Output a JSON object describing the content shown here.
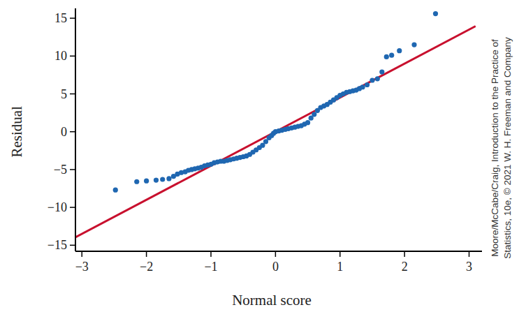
{
  "chart_data": {
    "type": "scatter",
    "x_label": "Normal score",
    "y_label": "Residual",
    "annotations": [
      "Moore/McCabe/Craig, Introduction to the Practice of",
      "Statistics, 10e, © 2021 W. H. Freeman and Company"
    ],
    "xlim": [
      -3.1,
      3.2
    ],
    "ylim": [
      -15.8,
      16.3
    ],
    "xticks": [
      {
        "value": -3,
        "label": "−3"
      },
      {
        "value": -2,
        "label": "−2"
      },
      {
        "value": -1,
        "label": "−1"
      },
      0,
      1,
      2,
      3
    ],
    "yticks": [
      {
        "value": -15,
        "label": "−15"
      },
      {
        "value": -10,
        "label": "−10"
      },
      {
        "value": -5,
        "label": "−5"
      },
      0,
      5,
      10,
      15
    ],
    "grid": false,
    "series": [
      {
        "type": "scatter",
        "color": "#1f67b1",
        "marker": "circle",
        "x": [
          -2.48,
          -2.15,
          -2.0,
          -1.85,
          -1.75,
          -1.65,
          -1.58,
          -1.52,
          -1.46,
          -1.4,
          -1.35,
          -1.3,
          -1.25,
          -1.2,
          -1.15,
          -1.1,
          -1.05,
          -1.0,
          -0.95,
          -0.9,
          -0.85,
          -0.8,
          -0.75,
          -0.7,
          -0.65,
          -0.6,
          -0.55,
          -0.5,
          -0.45,
          -0.4,
          -0.35,
          -0.3,
          -0.25,
          -0.2,
          -0.15,
          -0.1,
          -0.06,
          -0.03,
          0.0,
          0.05,
          0.1,
          0.15,
          0.2,
          0.25,
          0.3,
          0.35,
          0.4,
          0.45,
          0.5,
          0.55,
          0.6,
          0.65,
          0.7,
          0.75,
          0.8,
          0.85,
          0.9,
          0.95,
          1.0,
          1.05,
          1.1,
          1.15,
          1.2,
          1.25,
          1.3,
          1.35,
          1.42,
          1.5,
          1.58,
          1.65,
          1.72,
          1.8,
          1.92,
          2.15,
          2.48
        ],
        "values": [
          -7.7,
          -6.6,
          -6.5,
          -6.4,
          -6.3,
          -6.2,
          -5.9,
          -5.6,
          -5.4,
          -5.3,
          -5.1,
          -5.0,
          -4.9,
          -4.8,
          -4.7,
          -4.5,
          -4.4,
          -4.3,
          -4.1,
          -4.0,
          -3.9,
          -3.9,
          -3.8,
          -3.7,
          -3.6,
          -3.5,
          -3.4,
          -3.3,
          -3.2,
          -3.0,
          -2.7,
          -2.4,
          -2.1,
          -1.8,
          -1.3,
          -0.8,
          -0.5,
          -0.2,
          0.0,
          0.1,
          0.2,
          0.3,
          0.4,
          0.5,
          0.6,
          0.7,
          0.8,
          1.0,
          1.2,
          1.8,
          2.3,
          2.8,
          3.2,
          3.4,
          3.6,
          3.9,
          4.2,
          4.5,
          4.8,
          5.0,
          5.2,
          5.3,
          5.4,
          5.5,
          5.7,
          5.9,
          6.2,
          6.8,
          7.0,
          7.9,
          9.9,
          10.1,
          10.7,
          11.5,
          15.6
        ]
      },
      {
        "type": "line",
        "color": "#c8102e",
        "line_style": "solid",
        "x": [
          -3.1,
          3.1
        ],
        "values": [
          -13.95,
          13.95
        ]
      }
    ]
  }
}
